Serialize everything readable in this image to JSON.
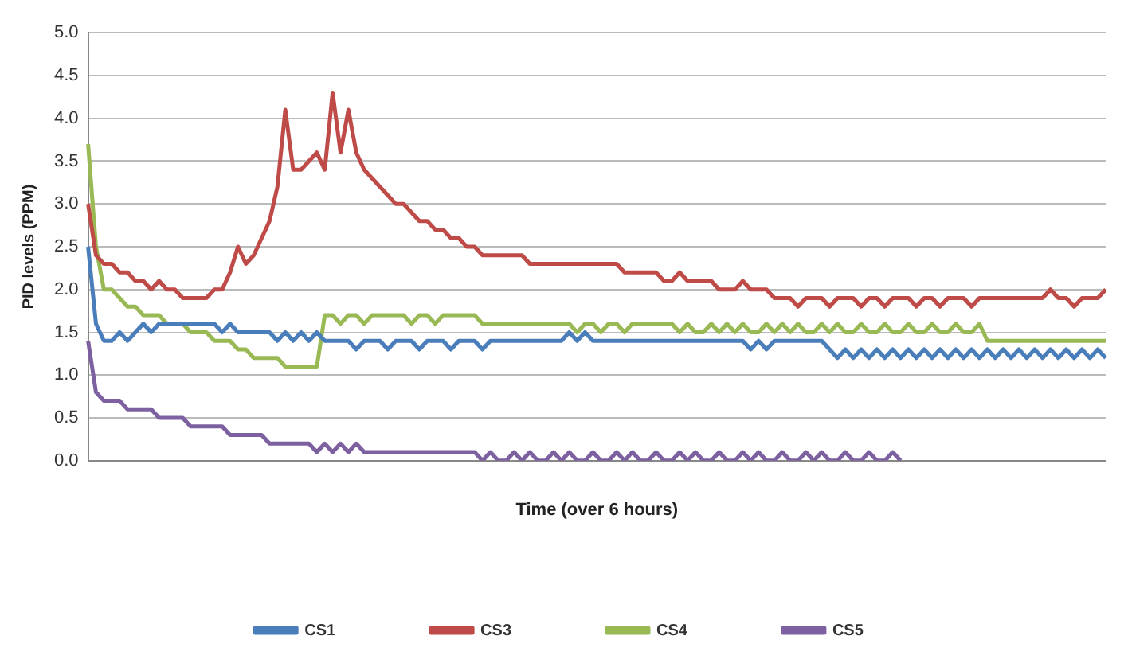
{
  "chart_data": {
    "type": "line",
    "xlabel": "Time (over 6 hours)",
    "ylabel": "PID levels (PPM)",
    "categories": [
      null,
      null,
      null,
      null,
      null,
      null,
      null,
      null,
      null,
      null,
      null,
      null,
      null,
      null,
      null,
      null,
      null,
      null,
      null,
      null,
      null,
      null,
      null,
      null,
      null,
      null,
      null,
      null,
      null,
      null,
      null,
      null,
      null,
      null,
      null,
      null,
      null,
      null,
      null,
      null,
      null,
      null,
      null,
      null,
      null,
      null,
      null,
      null,
      null,
      null,
      null,
      null,
      null,
      null,
      null,
      null,
      null,
      null,
      null,
      null,
      null,
      null,
      null,
      null,
      null,
      null,
      null,
      null,
      null,
      null,
      null,
      null,
      null,
      null,
      null,
      null,
      null,
      null,
      null,
      null,
      null,
      null,
      null,
      null,
      null,
      null,
      null,
      null,
      null,
      null,
      null,
      null,
      null,
      null,
      null,
      null,
      null,
      null,
      null,
      null,
      null,
      null,
      null,
      null,
      null,
      null,
      null,
      null,
      null,
      null,
      null,
      null,
      null,
      null,
      null,
      null,
      null,
      null,
      null,
      null,
      null,
      null,
      null,
      null,
      null,
      null,
      null,
      null,
      null,
      null
    ],
    "series": [
      {
        "name": "CS1",
        "color": "#4a7ebb",
        "values": [
          2.5,
          1.6,
          1.4,
          1.4,
          1.5,
          1.4,
          1.5,
          1.6,
          1.5,
          1.6,
          1.6,
          1.6,
          1.6,
          1.6,
          1.6,
          1.6,
          1.6,
          1.5,
          1.6,
          1.5,
          1.5,
          1.5,
          1.5,
          1.5,
          1.4,
          1.5,
          1.4,
          1.5,
          1.4,
          1.5,
          1.4,
          1.4,
          1.4,
          1.4,
          1.3,
          1.4,
          1.4,
          1.4,
          1.3,
          1.4,
          1.4,
          1.4,
          1.3,
          1.4,
          1.4,
          1.4,
          1.3,
          1.4,
          1.4,
          1.4,
          1.3,
          1.4,
          1.4,
          1.4,
          1.4,
          1.4,
          1.4,
          1.4,
          1.4,
          1.4,
          1.4,
          1.5,
          1.4,
          1.5,
          1.4,
          1.4,
          1.4,
          1.4,
          1.4,
          1.4,
          1.4,
          1.4,
          1.4,
          1.4,
          1.4,
          1.4,
          1.4,
          1.4,
          1.4,
          1.4,
          1.4,
          1.4,
          1.4,
          1.4,
          1.3,
          1.4,
          1.3,
          1.4,
          1.4,
          1.4,
          1.4,
          1.4,
          1.4,
          1.4,
          1.3,
          1.2,
          1.3,
          1.2,
          1.3,
          1.2,
          1.3,
          1.2,
          1.3,
          1.2,
          1.3,
          1.2,
          1.3,
          1.2,
          1.3,
          1.2,
          1.3,
          1.2,
          1.3,
          1.2,
          1.3,
          1.2,
          1.3,
          1.2,
          1.3,
          1.2,
          1.3,
          1.2,
          1.3,
          1.2,
          1.3,
          1.2,
          1.3,
          1.2,
          1.3,
          1.2
        ]
      },
      {
        "name": "CS3",
        "color": "#be4b48",
        "values": [
          3.0,
          2.4,
          2.3,
          2.3,
          2.2,
          2.2,
          2.1,
          2.1,
          2.0,
          2.1,
          2.0,
          2.0,
          1.9,
          1.9,
          1.9,
          1.9,
          2.0,
          2.0,
          2.2,
          2.5,
          2.3,
          2.4,
          2.6,
          2.8,
          3.2,
          4.1,
          3.4,
          3.4,
          3.5,
          3.6,
          3.4,
          4.3,
          3.6,
          4.1,
          3.6,
          3.4,
          3.3,
          3.2,
          3.1,
          3.0,
          3.0,
          2.9,
          2.8,
          2.8,
          2.7,
          2.7,
          2.6,
          2.6,
          2.5,
          2.5,
          2.4,
          2.4,
          2.4,
          2.4,
          2.4,
          2.4,
          2.3,
          2.3,
          2.3,
          2.3,
          2.3,
          2.3,
          2.3,
          2.3,
          2.3,
          2.3,
          2.3,
          2.3,
          2.2,
          2.2,
          2.2,
          2.2,
          2.2,
          2.1,
          2.1,
          2.2,
          2.1,
          2.1,
          2.1,
          2.1,
          2.0,
          2.0,
          2.0,
          2.1,
          2.0,
          2.0,
          2.0,
          1.9,
          1.9,
          1.9,
          1.8,
          1.9,
          1.9,
          1.9,
          1.8,
          1.9,
          1.9,
          1.9,
          1.8,
          1.9,
          1.9,
          1.8,
          1.9,
          1.9,
          1.9,
          1.8,
          1.9,
          1.9,
          1.8,
          1.9,
          1.9,
          1.9,
          1.8,
          1.9,
          1.9,
          1.9,
          1.9,
          1.9,
          1.9,
          1.9,
          1.9,
          1.9,
          2.0,
          1.9,
          1.9,
          1.8,
          1.9,
          1.9,
          1.9,
          2.0
        ]
      },
      {
        "name": "CS4",
        "color": "#98b954",
        "values": [
          3.7,
          2.5,
          2.0,
          2.0,
          1.9,
          1.8,
          1.8,
          1.7,
          1.7,
          1.7,
          1.6,
          1.6,
          1.6,
          1.5,
          1.5,
          1.5,
          1.4,
          1.4,
          1.4,
          1.3,
          1.3,
          1.2,
          1.2,
          1.2,
          1.2,
          1.1,
          1.1,
          1.1,
          1.1,
          1.1,
          1.7,
          1.7,
          1.6,
          1.7,
          1.7,
          1.6,
          1.7,
          1.7,
          1.7,
          1.7,
          1.7,
          1.6,
          1.7,
          1.7,
          1.6,
          1.7,
          1.7,
          1.7,
          1.7,
          1.7,
          1.6,
          1.6,
          1.6,
          1.6,
          1.6,
          1.6,
          1.6,
          1.6,
          1.6,
          1.6,
          1.6,
          1.6,
          1.5,
          1.6,
          1.6,
          1.5,
          1.6,
          1.6,
          1.5,
          1.6,
          1.6,
          1.6,
          1.6,
          1.6,
          1.6,
          1.5,
          1.6,
          1.5,
          1.5,
          1.6,
          1.5,
          1.6,
          1.5,
          1.6,
          1.5,
          1.5,
          1.6,
          1.5,
          1.6,
          1.5,
          1.6,
          1.5,
          1.5,
          1.6,
          1.5,
          1.6,
          1.5,
          1.5,
          1.6,
          1.5,
          1.5,
          1.6,
          1.5,
          1.5,
          1.6,
          1.5,
          1.5,
          1.6,
          1.5,
          1.5,
          1.6,
          1.5,
          1.5,
          1.6,
          1.4,
          1.4,
          1.4,
          1.4,
          1.4,
          1.4,
          1.4,
          1.4,
          1.4,
          1.4,
          1.4,
          1.4,
          1.4,
          1.4,
          1.4,
          1.4
        ]
      },
      {
        "name": "CS5",
        "color": "#7d60a0",
        "values": [
          1.4,
          0.8,
          0.7,
          0.7,
          0.7,
          0.6,
          0.6,
          0.6,
          0.6,
          0.5,
          0.5,
          0.5,
          0.5,
          0.4,
          0.4,
          0.4,
          0.4,
          0.4,
          0.3,
          0.3,
          0.3,
          0.3,
          0.3,
          0.2,
          0.2,
          0.2,
          0.2,
          0.2,
          0.2,
          0.1,
          0.2,
          0.1,
          0.2,
          0.1,
          0.2,
          0.1,
          0.1,
          0.1,
          0.1,
          0.1,
          0.1,
          0.1,
          0.1,
          0.1,
          0.1,
          0.1,
          0.1,
          0.1,
          0.1,
          0.1,
          0.0,
          0.1,
          0.0,
          0.0,
          0.1,
          0.0,
          0.1,
          0.0,
          0.0,
          0.1,
          0.0,
          0.1,
          0.0,
          0.0,
          0.1,
          0.0,
          0.0,
          0.1,
          0.0,
          0.1,
          0.0,
          0.0,
          0.1,
          0.0,
          0.0,
          0.1,
          0.0,
          0.1,
          0.0,
          0.0,
          0.1,
          0.0,
          0.0,
          0.1,
          0.0,
          0.1,
          0.0,
          0.0,
          0.1,
          0.0,
          0.0,
          0.1,
          0.0,
          0.1,
          0.0,
          0.0,
          0.1,
          0.0,
          0.0,
          0.1,
          0.0,
          0.0,
          0.1,
          0.0,
          null,
          null,
          null,
          null,
          null,
          null,
          null,
          null,
          null,
          null,
          null,
          null,
          null,
          null,
          null,
          null,
          null,
          null,
          null,
          null,
          null,
          null,
          null,
          null,
          null,
          null
        ]
      }
    ],
    "ylim": [
      0,
      5
    ],
    "yticks": [
      {
        "value": 0,
        "label": "0.0"
      },
      {
        "value": 0.5,
        "label": "0.5"
      },
      {
        "value": 1,
        "label": "1.0"
      },
      {
        "value": 1.5,
        "label": "1.5"
      },
      {
        "value": 2,
        "label": "2.0"
      },
      {
        "value": 2.5,
        "label": "2.5"
      },
      {
        "value": 3,
        "label": "3.0"
      },
      {
        "value": 3.5,
        "label": "3.5"
      },
      {
        "value": 4,
        "label": "4.0"
      },
      {
        "value": 4.5,
        "label": "4.5"
      },
      {
        "value": 5,
        "label": "5.0"
      }
    ],
    "grid": "y",
    "legend": "bottom",
    "marker": "none",
    "line_style": "solid"
  }
}
